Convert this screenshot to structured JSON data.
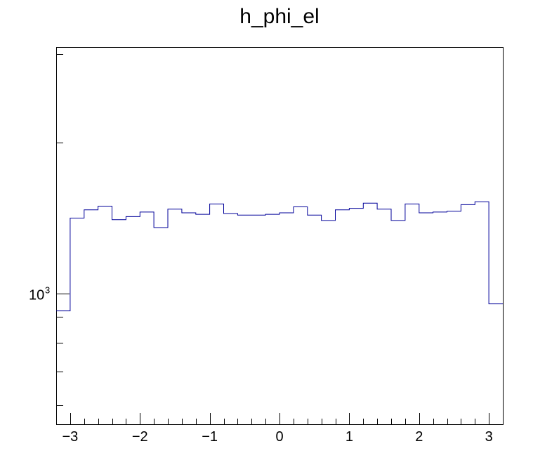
{
  "chart_data": {
    "type": "histogram",
    "title": "h_phi_el",
    "xlabel": "",
    "ylabel": "",
    "x_range": [
      -3.2,
      3.2
    ],
    "y_scale": "log",
    "y_range": [
      550,
      3100
    ],
    "grid": false,
    "legend": "none",
    "line_color": "#000099",
    "x_ticks": [
      "−3",
      "−2",
      "−1",
      "0",
      "1",
      "2",
      "3"
    ],
    "y_tick_labels": [
      {
        "base": "10",
        "exp": "3",
        "value": 1000
      }
    ],
    "bin_edges_start": -3.2,
    "bin_width": 0.2,
    "values": [
      925,
      1415,
      1470,
      1495,
      1405,
      1425,
      1455,
      1355,
      1475,
      1450,
      1440,
      1510,
      1445,
      1435,
      1435,
      1440,
      1450,
      1490,
      1435,
      1400,
      1470,
      1480,
      1515,
      1475,
      1400,
      1510,
      1450,
      1455,
      1460,
      1505,
      1525,
      955
    ]
  }
}
